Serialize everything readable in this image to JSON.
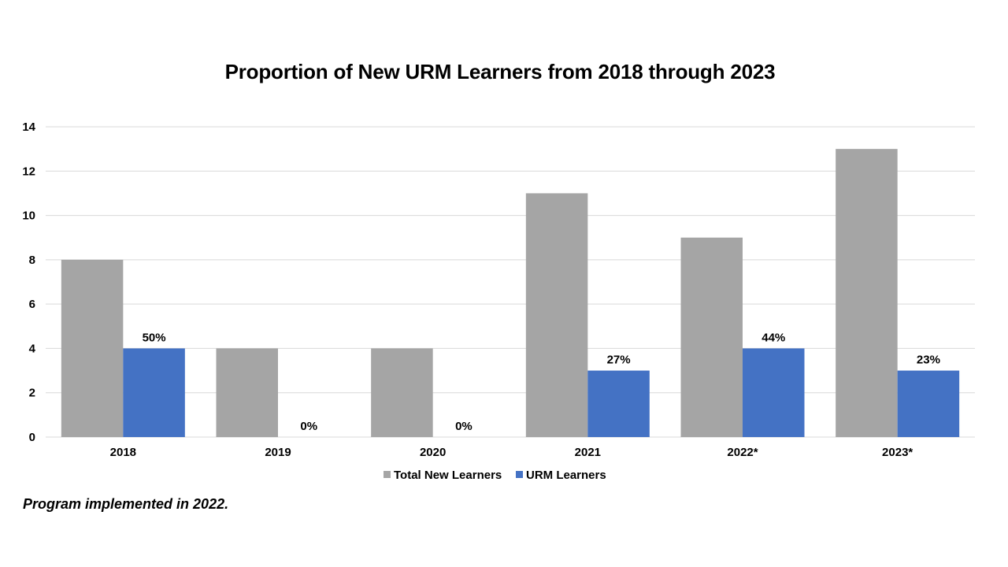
{
  "chart_data": {
    "type": "bar",
    "title": "Proportion of New URM Learners from 2018 through 2023",
    "categories": [
      "2018",
      "2019",
      "2020",
      "2021",
      "2022*",
      "2023*"
    ],
    "series": [
      {
        "name": "Total New Learners",
        "values": [
          8,
          4,
          4,
          11,
          9,
          13
        ],
        "color": "#a5a5a5"
      },
      {
        "name": "URM Learners",
        "values": [
          4,
          0,
          0,
          3,
          4,
          3
        ],
        "color": "#4472c4",
        "data_labels": [
          "50%",
          "0%",
          "0%",
          "27%",
          "44%",
          "23%"
        ]
      }
    ],
    "y_ticks": [
      "0",
      "2",
      "4",
      "6",
      "8",
      "10",
      "12",
      "14"
    ],
    "ylim": [
      0,
      14
    ],
    "grid": true,
    "legend_position": "bottom",
    "xlabel": "",
    "ylabel": ""
  },
  "footnote": "Program implemented in 2022."
}
